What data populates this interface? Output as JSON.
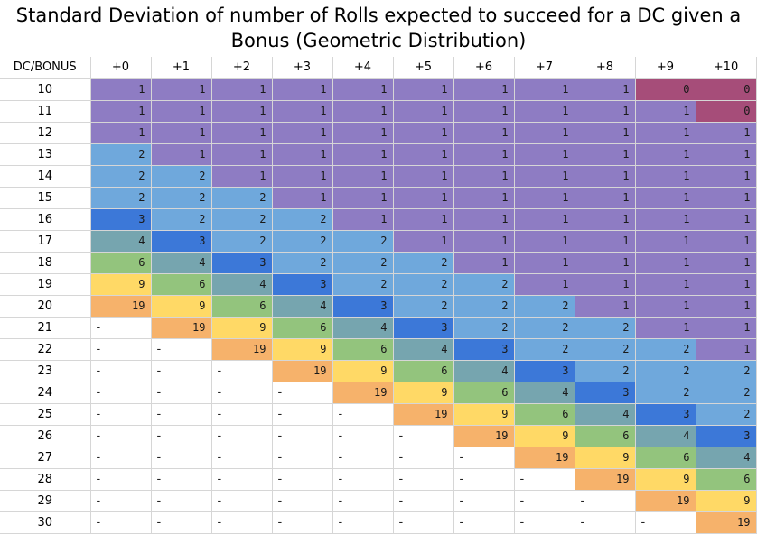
{
  "title": {
    "line1": "Standard Deviation of number of Rolls expected to succeed for a DC given a",
    "line2": "Bonus (Geometric Distribution)"
  },
  "header": [
    "DC/BONUS",
    "+0",
    "+1",
    "+2",
    "+3",
    "+4",
    "+5",
    "+6",
    "+7",
    "+8",
    "+9",
    "+10"
  ],
  "colors": {
    "0": "#a64d79",
    "1": "#8e7cc3",
    "2": "#6fa8dc",
    "3": "#3c78d8",
    "4": "#76a5af",
    "6": "#93c47d",
    "9": "#ffd966",
    "19": "#f6b26b"
  },
  "rows": [
    {
      "dc": "10",
      "cells": [
        "1",
        "1",
        "1",
        "1",
        "1",
        "1",
        "1",
        "1",
        "1",
        "0",
        "0"
      ]
    },
    {
      "dc": "11",
      "cells": [
        "1",
        "1",
        "1",
        "1",
        "1",
        "1",
        "1",
        "1",
        "1",
        "1",
        "0"
      ]
    },
    {
      "dc": "12",
      "cells": [
        "1",
        "1",
        "1",
        "1",
        "1",
        "1",
        "1",
        "1",
        "1",
        "1",
        "1"
      ]
    },
    {
      "dc": "13",
      "cells": [
        "2",
        "1",
        "1",
        "1",
        "1",
        "1",
        "1",
        "1",
        "1",
        "1",
        "1"
      ]
    },
    {
      "dc": "14",
      "cells": [
        "2",
        "2",
        "1",
        "1",
        "1",
        "1",
        "1",
        "1",
        "1",
        "1",
        "1"
      ]
    },
    {
      "dc": "15",
      "cells": [
        "2",
        "2",
        "2",
        "1",
        "1",
        "1",
        "1",
        "1",
        "1",
        "1",
        "1"
      ]
    },
    {
      "dc": "16",
      "cells": [
        "3",
        "2",
        "2",
        "2",
        "1",
        "1",
        "1",
        "1",
        "1",
        "1",
        "1"
      ]
    },
    {
      "dc": "17",
      "cells": [
        "4",
        "3",
        "2",
        "2",
        "2",
        "1",
        "1",
        "1",
        "1",
        "1",
        "1"
      ]
    },
    {
      "dc": "18",
      "cells": [
        "6",
        "4",
        "3",
        "2",
        "2",
        "2",
        "1",
        "1",
        "1",
        "1",
        "1"
      ]
    },
    {
      "dc": "19",
      "cells": [
        "9",
        "6",
        "4",
        "3",
        "2",
        "2",
        "2",
        "1",
        "1",
        "1",
        "1"
      ]
    },
    {
      "dc": "20",
      "cells": [
        "19",
        "9",
        "6",
        "4",
        "3",
        "2",
        "2",
        "2",
        "1",
        "1",
        "1"
      ]
    },
    {
      "dc": "21",
      "cells": [
        "-",
        "19",
        "9",
        "6",
        "4",
        "3",
        "2",
        "2",
        "2",
        "1",
        "1"
      ]
    },
    {
      "dc": "22",
      "cells": [
        "-",
        "-",
        "19",
        "9",
        "6",
        "4",
        "3",
        "2",
        "2",
        "2",
        "1"
      ]
    },
    {
      "dc": "23",
      "cells": [
        "-",
        "-",
        "-",
        "19",
        "9",
        "6",
        "4",
        "3",
        "2",
        "2",
        "2"
      ]
    },
    {
      "dc": "24",
      "cells": [
        "-",
        "-",
        "-",
        "-",
        "19",
        "9",
        "6",
        "4",
        "3",
        "2",
        "2"
      ]
    },
    {
      "dc": "25",
      "cells": [
        "-",
        "-",
        "-",
        "-",
        "-",
        "19",
        "9",
        "6",
        "4",
        "3",
        "2"
      ]
    },
    {
      "dc": "26",
      "cells": [
        "-",
        "-",
        "-",
        "-",
        "-",
        "-",
        "19",
        "9",
        "6",
        "4",
        "3"
      ]
    },
    {
      "dc": "27",
      "cells": [
        "-",
        "-",
        "-",
        "-",
        "-",
        "-",
        "-",
        "19",
        "9",
        "6",
        "4"
      ]
    },
    {
      "dc": "28",
      "cells": [
        "-",
        "-",
        "-",
        "-",
        "-",
        "-",
        "-",
        "-",
        "19",
        "9",
        "6"
      ]
    },
    {
      "dc": "29",
      "cells": [
        "-",
        "-",
        "-",
        "-",
        "-",
        "-",
        "-",
        "-",
        "-",
        "19",
        "9"
      ]
    },
    {
      "dc": "30",
      "cells": [
        "-",
        "-",
        "-",
        "-",
        "-",
        "-",
        "-",
        "-",
        "-",
        "-",
        "19"
      ]
    }
  ]
}
